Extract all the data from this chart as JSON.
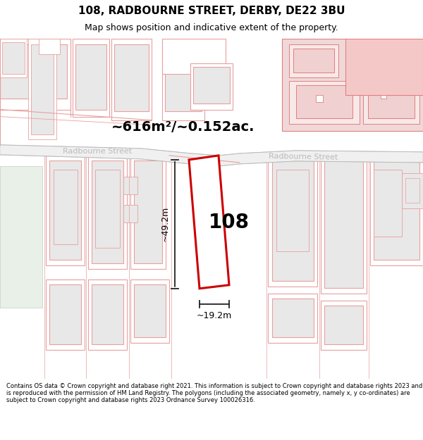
{
  "title": "108, RADBOURNE STREET, DERBY, DE22 3BU",
  "subtitle": "Map shows position and indicative extent of the property.",
  "footer": "Contains OS data © Crown copyright and database right 2021. This information is subject to Crown copyright and database rights 2023 and is reproduced with the permission of HM Land Registry. The polygons (including the associated geometry, namely x, y co-ordinates) are subject to Crown copyright and database rights 2023 Ordnance Survey 100026316.",
  "area_label": "~616m²/~0.152ac.",
  "number_label": "108",
  "dim_h": "~49.2m",
  "dim_w": "~19.2m",
  "street_label_left": "Radbourne Street",
  "street_label_right": "Radbourne Street",
  "bg_color": "#ffffff",
  "map_bg": "#ffffff",
  "building_fill": "#e8e8e8",
  "highlight_fill": "#ffffff",
  "highlight_stroke": "#cc0000",
  "line_color": "#e8a0a0",
  "dim_line_color": "#222222",
  "street_label_color": "#bbbbbb",
  "title_fontsize": 11,
  "subtitle_fontsize": 9,
  "area_fontsize": 14,
  "number_fontsize": 20,
  "dim_fontsize": 9,
  "street_fontsize": 8
}
